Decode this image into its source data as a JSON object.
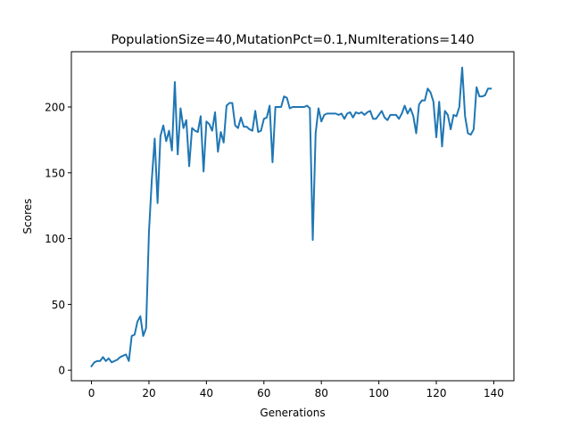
{
  "chart_data": {
    "type": "line",
    "title": "PopulationSize=40,MutationPct=0.1,NumIterations=140",
    "xlabel": "Generations",
    "ylabel": "Scores",
    "xlim": [
      -7,
      147
    ],
    "ylim": [
      -8,
      242
    ],
    "xticks": [
      0,
      20,
      40,
      60,
      80,
      100,
      120,
      140
    ],
    "yticks": [
      0,
      50,
      100,
      150,
      200
    ],
    "grid": false,
    "series": [
      {
        "color": "#1f77b4",
        "x": [
          0,
          1,
          2,
          3,
          4,
          5,
          6,
          7,
          8,
          9,
          10,
          11,
          12,
          13,
          14,
          15,
          16,
          17,
          18,
          19,
          20,
          21,
          22,
          23,
          24,
          25,
          26,
          27,
          28,
          29,
          30,
          31,
          32,
          33,
          34,
          35,
          36,
          37,
          38,
          39,
          40,
          41,
          42,
          43,
          44,
          45,
          46,
          47,
          48,
          49,
          50,
          51,
          52,
          53,
          54,
          55,
          56,
          57,
          58,
          59,
          60,
          61,
          62,
          63,
          64,
          65,
          66,
          67,
          68,
          69,
          70,
          71,
          72,
          73,
          74,
          75,
          76,
          77,
          78,
          79,
          80,
          81,
          82,
          83,
          84,
          85,
          86,
          87,
          88,
          89,
          90,
          91,
          92,
          93,
          94,
          95,
          96,
          97,
          98,
          99,
          100,
          101,
          102,
          103,
          104,
          105,
          106,
          107,
          108,
          109,
          110,
          111,
          112,
          113,
          114,
          115,
          116,
          117,
          118,
          119,
          120,
          121,
          122,
          123,
          124,
          125,
          126,
          127,
          128,
          129,
          130,
          131,
          132,
          133,
          134,
          135,
          136,
          137,
          138,
          139
        ],
        "values": [
          3,
          6,
          7,
          7,
          10,
          7,
          9,
          6,
          7,
          8,
          10,
          11,
          12,
          7,
          26,
          27,
          37,
          41,
          26,
          32,
          105,
          145,
          176,
          127,
          178,
          186,
          174,
          182,
          167,
          219,
          164,
          199,
          184,
          190,
          155,
          184,
          182,
          181,
          193,
          151,
          189,
          187,
          182,
          196,
          166,
          181,
          173,
          201,
          203,
          203,
          186,
          184,
          192,
          185,
          185,
          183,
          182,
          197,
          181,
          182,
          191,
          192,
          201,
          158,
          200,
          200,
          200,
          208,
          207,
          199,
          200,
          200,
          200,
          200,
          200,
          201,
          199,
          99,
          180,
          199,
          189,
          194,
          195,
          195,
          195,
          195,
          194,
          195,
          191,
          195,
          196,
          192,
          196,
          195,
          196,
          194,
          196,
          197,
          191,
          191,
          194,
          197,
          192,
          190,
          194,
          194,
          194,
          191,
          195,
          201,
          195,
          199,
          193,
          180,
          202,
          205,
          205,
          214,
          211,
          204,
          177,
          204,
          170,
          197,
          194,
          183,
          194,
          193,
          200,
          230,
          193,
          180,
          179,
          183,
          215,
          208,
          208,
          209,
          214,
          214
        ]
      }
    ]
  }
}
